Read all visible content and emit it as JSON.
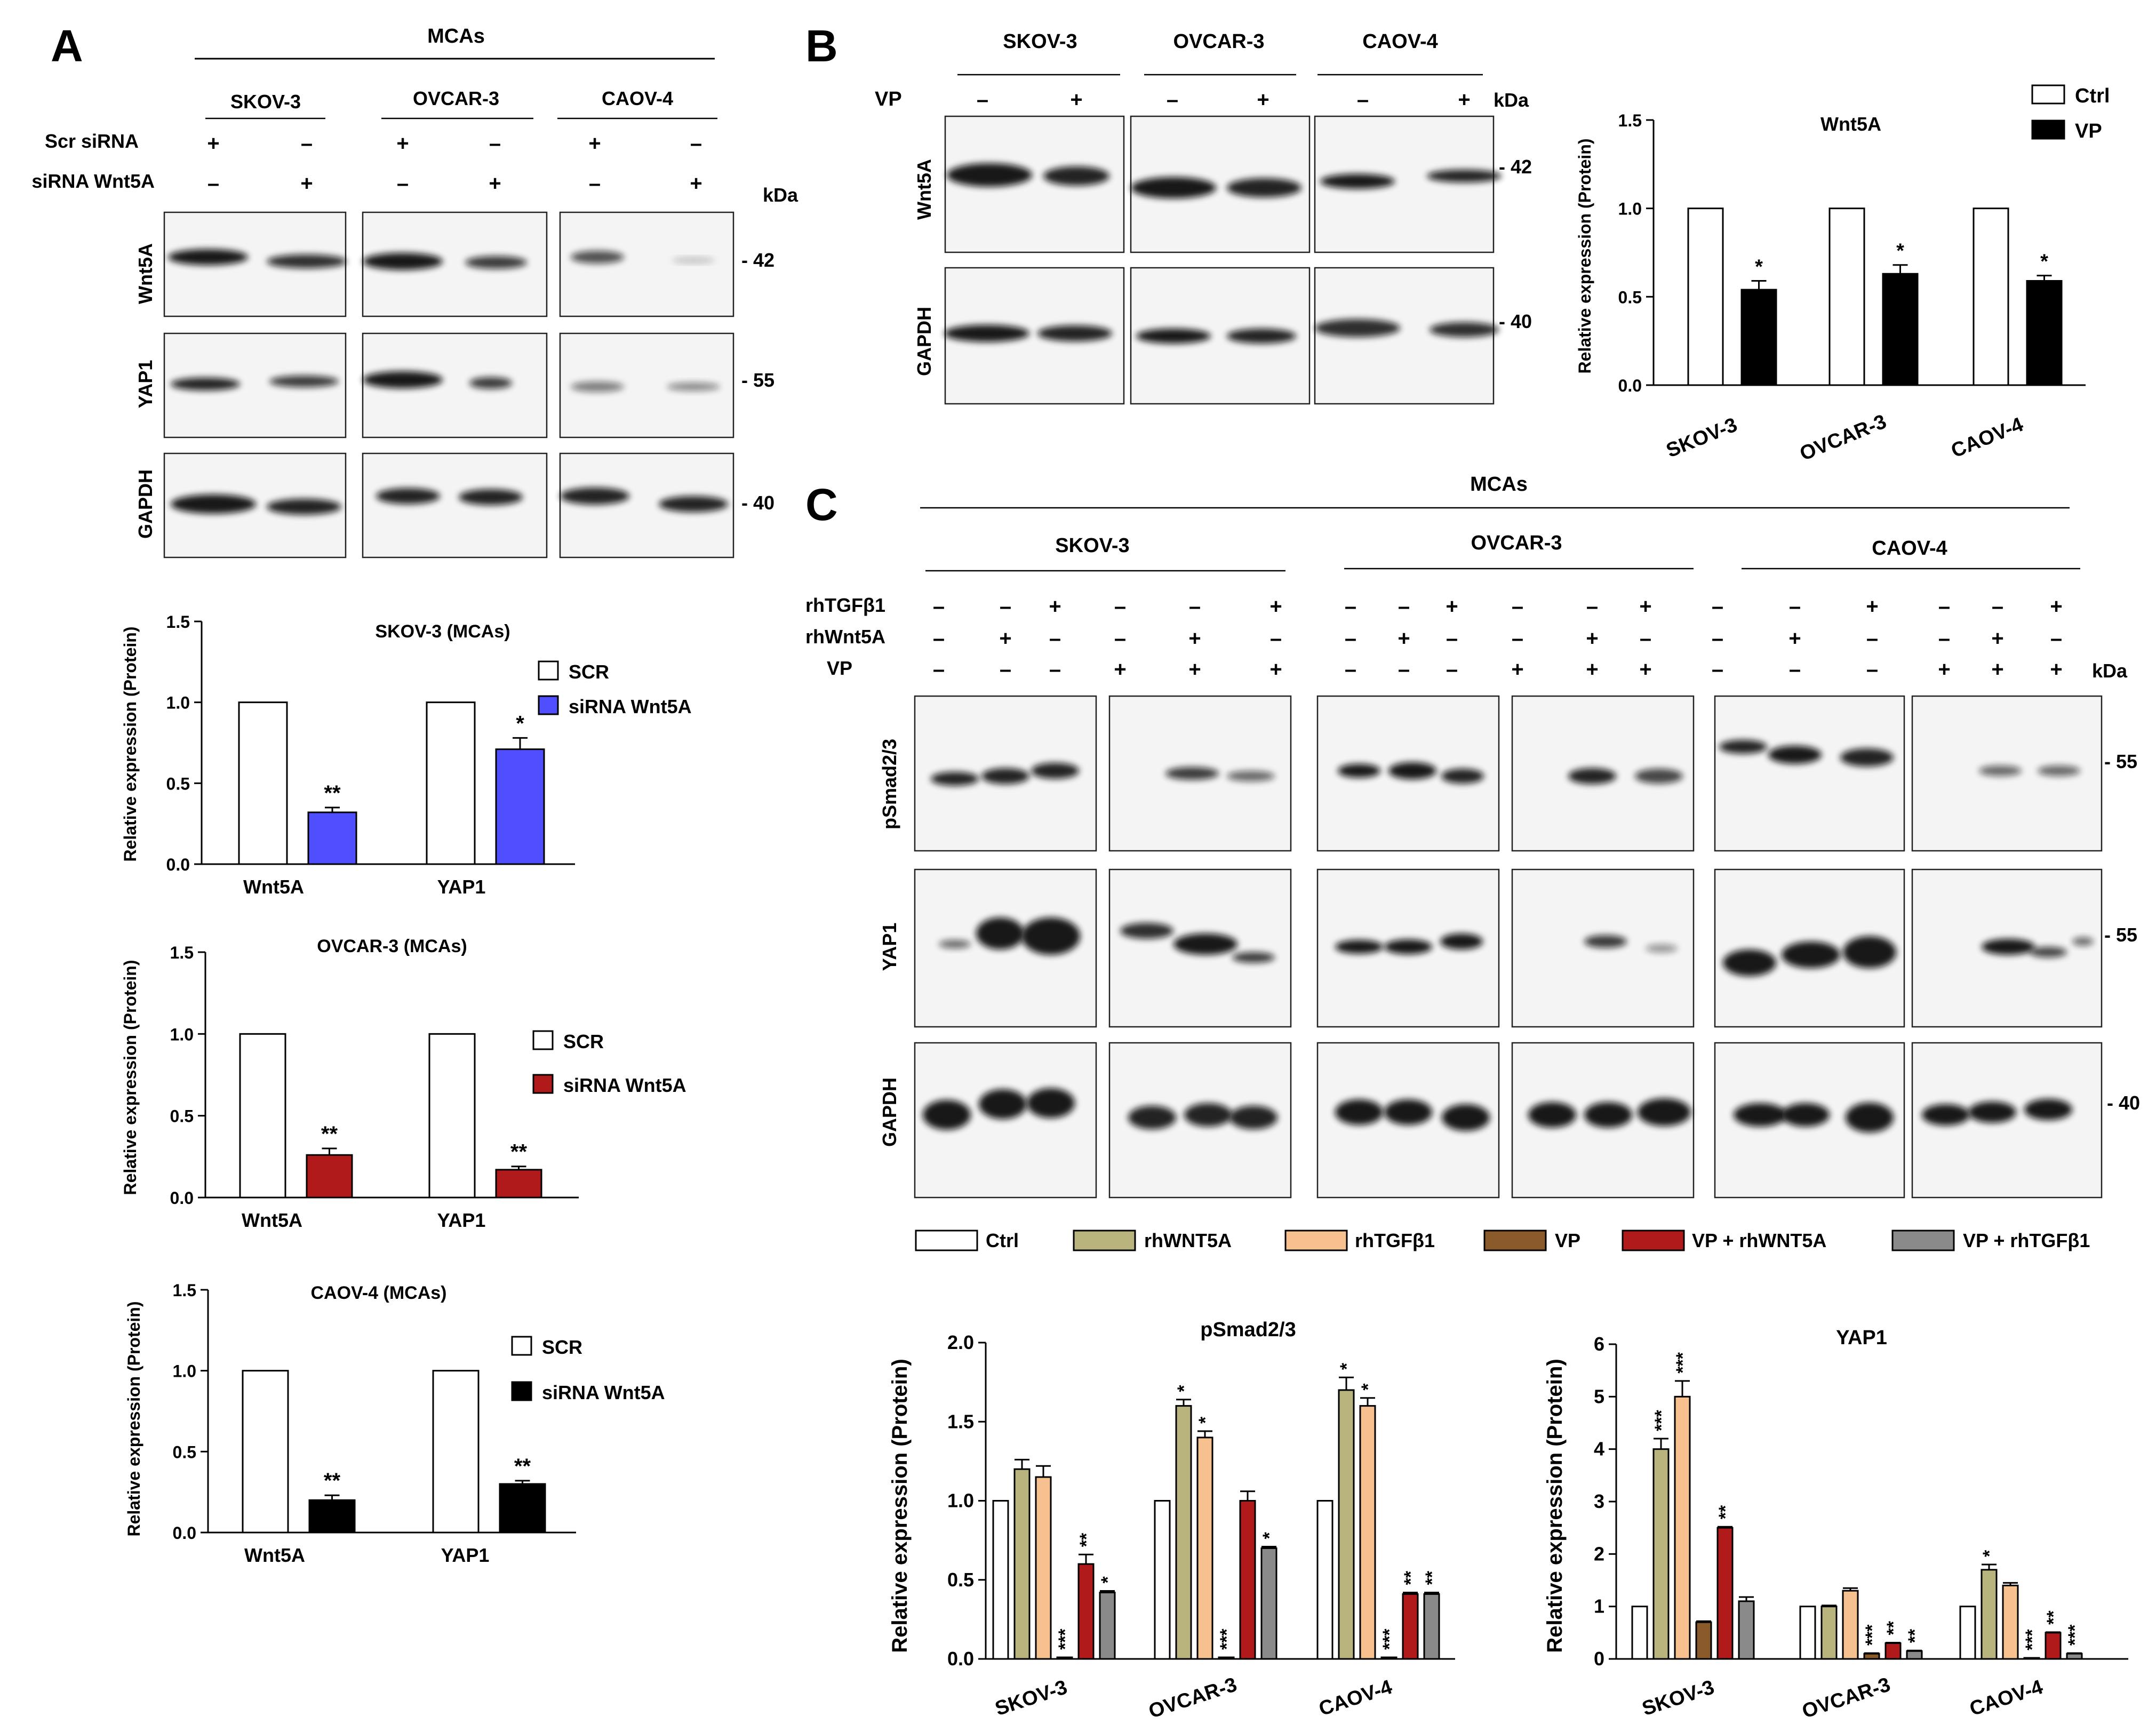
{
  "panels": {
    "A": {
      "letter": "A",
      "header": "MCAs",
      "cell_lines": [
        "SKOV-3",
        "OVCAR-3",
        "CAOV-4"
      ],
      "row_labels": [
        "Scr siRNA",
        "siRNA Wnt5A"
      ],
      "signs": [
        [
          "+",
          "–",
          "+",
          "–",
          "+",
          "–"
        ],
        [
          "–",
          "+",
          "–",
          "+",
          "–",
          "+"
        ]
      ],
      "kda": "kDa",
      "blot_labels": [
        "Wnt5A",
        "YAP1",
        "GAPDH"
      ],
      "mw": [
        "- 42",
        "- 55",
        "- 40"
      ]
    },
    "B": {
      "letter": "B",
      "cell_lines": [
        "SKOV-3",
        "OVCAR-3",
        "CAOV-4"
      ],
      "row_label": "VP",
      "signs": [
        "–",
        "+",
        "–",
        "+",
        "–",
        "+"
      ],
      "kda": "kDa",
      "blot_labels": [
        "Wnt5A",
        "GAPDH"
      ],
      "mw": [
        "- 42",
        "- 40"
      ]
    },
    "C": {
      "letter": "C",
      "header": "MCAs",
      "cell_lines": [
        "SKOV-3",
        "OVCAR-3",
        "CAOV-4"
      ],
      "row_labels": [
        "rhTGFβ1",
        "rhWnt5A",
        "VP"
      ],
      "signs": [
        [
          "–",
          "–",
          "+",
          "–",
          "–",
          "+",
          "–",
          "–",
          "+",
          "–",
          "–",
          "+",
          "–",
          "–",
          "+",
          "–",
          "–",
          "+"
        ],
        [
          "–",
          "+",
          "–",
          "–",
          "+",
          "–",
          "–",
          "+",
          "–",
          "–",
          "+",
          "–",
          "–",
          "+",
          "–",
          "–",
          "+",
          "–"
        ],
        [
          "–",
          "–",
          "–",
          "+",
          "+",
          "+",
          "–",
          "–",
          "–",
          "+",
          "+",
          "+",
          "–",
          "–",
          "–",
          "+",
          "+",
          "+"
        ]
      ],
      "kda": "kDa",
      "blot_labels": [
        "pSmad2/3",
        "YAP1",
        "GAPDH"
      ],
      "mw": [
        "- 55",
        "- 55",
        "- 40"
      ],
      "legend": [
        "Ctrl",
        "rhWNT5A",
        "rhTGFβ1",
        "VP",
        "VP + rhWNT5A",
        "VP + rhTGFβ1"
      ]
    }
  },
  "colors": {
    "blue": "#4f4fff",
    "dark_red": "#b01a1a",
    "black": "#000000",
    "white": "#ffffff",
    "c_series": [
      "#ffffff",
      "#b9b37e",
      "#f6c08f",
      "#8b5a2b",
      "#b01a1a",
      "#8a8a8a"
    ]
  },
  "chart_data": [
    {
      "id": "A1",
      "type": "bar",
      "title": "SKOV-3 (MCAs)",
      "ylabel": "Relative expression (Protein)",
      "categories": [
        "Wnt5A",
        "YAP1"
      ],
      "ylim": [
        0,
        1.5
      ],
      "yticks": [
        "0.0",
        "0.5",
        "1.0",
        "1.5"
      ],
      "series": [
        {
          "name": "SCR",
          "values": [
            1.0,
            1.0
          ],
          "errors": [
            0,
            0
          ]
        },
        {
          "name": "siRNA Wnt5A",
          "values": [
            0.32,
            0.71
          ],
          "errors": [
            0.03,
            0.07
          ],
          "labels": [
            "**",
            "*"
          ]
        }
      ]
    },
    {
      "id": "A2",
      "type": "bar",
      "title": "OVCAR-3 (MCAs)",
      "ylabel": "Relative expression (Protein)",
      "categories": [
        "Wnt5A",
        "YAP1"
      ],
      "ylim": [
        0,
        1.5
      ],
      "yticks": [
        "0.0",
        "0.5",
        "1.0",
        "1.5"
      ],
      "series": [
        {
          "name": "SCR",
          "values": [
            1.0,
            1.0
          ],
          "errors": [
            0,
            0
          ]
        },
        {
          "name": "siRNA Wnt5A",
          "values": [
            0.26,
            0.17
          ],
          "errors": [
            0.04,
            0.02
          ],
          "labels": [
            "**",
            "**"
          ]
        }
      ]
    },
    {
      "id": "A3",
      "type": "bar",
      "title": "CAOV-4 (MCAs)",
      "ylabel": "Relative expression (Protein)",
      "categories": [
        "Wnt5A",
        "YAP1"
      ],
      "ylim": [
        0,
        1.5
      ],
      "yticks": [
        "0.0",
        "0.5",
        "1.0",
        "1.5"
      ],
      "series": [
        {
          "name": "SCR",
          "values": [
            1.0,
            1.0
          ],
          "errors": [
            0,
            0
          ]
        },
        {
          "name": "siRNA Wnt5A",
          "values": [
            0.2,
            0.3
          ],
          "errors": [
            0.03,
            0.02
          ],
          "labels": [
            "**",
            "**"
          ]
        }
      ]
    },
    {
      "id": "B1",
      "type": "bar",
      "title": "Wnt5A",
      "ylabel": "Relative expression (Protein)",
      "categories": [
        "SKOV-3",
        "OVCAR-3",
        "CAOV-4"
      ],
      "ylim": [
        0,
        1.5
      ],
      "yticks": [
        "0.0",
        "0.5",
        "1.0",
        "1.5"
      ],
      "series": [
        {
          "name": "Ctrl",
          "values": [
            1.0,
            1.0,
            1.0
          ],
          "errors": [
            0,
            0,
            0
          ]
        },
        {
          "name": "VP",
          "values": [
            0.54,
            0.63,
            0.59
          ],
          "errors": [
            0.05,
            0.05,
            0.03
          ],
          "labels": [
            "*",
            "*",
            "*"
          ]
        }
      ]
    },
    {
      "id": "C1",
      "type": "bar",
      "title": "pSmad2/3",
      "ylabel": "Relative expression (Protein)",
      "categories": [
        "SKOV-3",
        "OVCAR-3",
        "CAOV-4"
      ],
      "ylim": [
        0,
        2.0
      ],
      "yticks": [
        "0.0",
        "0.5",
        "1.0",
        "1.5",
        "2.0"
      ],
      "series": [
        {
          "name": "Ctrl",
          "values": [
            1.0,
            1.0,
            1.0
          ],
          "errors": [
            0,
            0,
            0
          ],
          "labels": [
            "",
            "",
            ""
          ]
        },
        {
          "name": "rhWNT5A",
          "values": [
            1.2,
            1.6,
            1.7
          ],
          "errors": [
            0.06,
            0.04,
            0.08
          ],
          "labels": [
            "",
            "*",
            "*"
          ]
        },
        {
          "name": "rhTGFβ1",
          "values": [
            1.15,
            1.4,
            1.6
          ],
          "errors": [
            0.07,
            0.04,
            0.05
          ],
          "labels": [
            "",
            "*",
            "*"
          ]
        },
        {
          "name": "VP",
          "values": [
            0.01,
            0.01,
            0.01
          ],
          "errors": [
            0,
            0,
            0
          ],
          "labels": [
            "***",
            "***",
            "***"
          ]
        },
        {
          "name": "VP + rhWNT5A",
          "values": [
            0.6,
            1.0,
            0.41
          ],
          "errors": [
            0.06,
            0.06,
            0.01
          ],
          "labels": [
            "**",
            "",
            "**"
          ]
        },
        {
          "name": "VP + rhTGFβ1",
          "values": [
            0.42,
            0.7,
            0.41
          ],
          "errors": [
            0.01,
            0.01,
            0.01
          ],
          "labels": [
            "*",
            "*",
            "**"
          ]
        }
      ]
    },
    {
      "id": "C2",
      "type": "bar",
      "title": "YAP1",
      "ylabel": "Relative expression (Protein)",
      "categories": [
        "SKOV-3",
        "OVCAR-3",
        "CAOV-4"
      ],
      "ylim": [
        0,
        6
      ],
      "yticks": [
        "0",
        "1",
        "2",
        "3",
        "4",
        "5",
        "6"
      ],
      "series": [
        {
          "name": "Ctrl",
          "values": [
            1.0,
            1.0,
            1.0
          ],
          "errors": [
            0,
            0,
            0
          ],
          "labels": [
            "",
            "",
            ""
          ]
        },
        {
          "name": "rhWNT5A",
          "values": [
            4.0,
            1.0,
            1.7
          ],
          "errors": [
            0.2,
            0.02,
            0.1
          ],
          "labels": [
            "***",
            "",
            "*"
          ]
        },
        {
          "name": "rhTGFβ1",
          "values": [
            5.0,
            1.3,
            1.4
          ],
          "errors": [
            0.3,
            0.05,
            0.05
          ],
          "labels": [
            "***",
            "",
            ""
          ]
        },
        {
          "name": "VP",
          "values": [
            0.7,
            0.1,
            0.02
          ],
          "errors": [
            0.02,
            0.01,
            0
          ],
          "labels": [
            "",
            "***",
            "***"
          ]
        },
        {
          "name": "VP + rhWNT5A",
          "values": [
            2.5,
            0.3,
            0.5
          ],
          "errors": [
            0.02,
            0.01,
            0.01
          ],
          "labels": [
            "**",
            "**",
            "**"
          ]
        },
        {
          "name": "VP + rhTGFβ1",
          "values": [
            1.1,
            0.15,
            0.1
          ],
          "errors": [
            0.08,
            0.01,
            0.01
          ],
          "labels": [
            "",
            "**",
            "***"
          ]
        }
      ]
    }
  ]
}
